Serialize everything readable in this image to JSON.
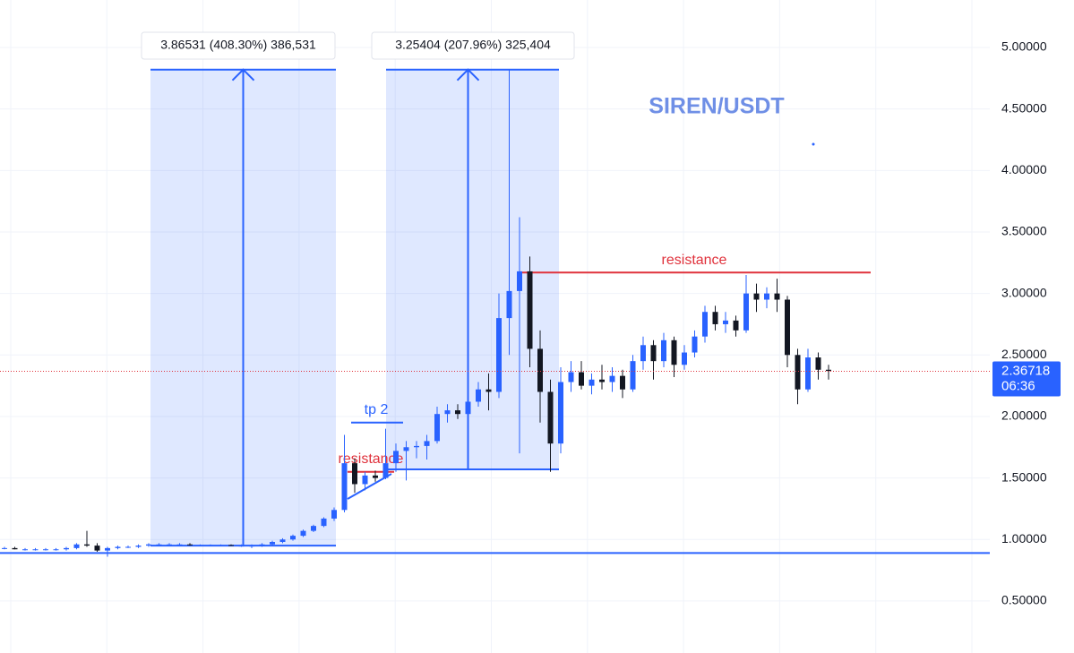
{
  "chart_data": {
    "type": "candlestick",
    "title": "SIREN/USDT",
    "ylim": [
      0.077,
      5.386
    ],
    "yticks": [
      {
        "value": 0.5,
        "label": "0.50000"
      },
      {
        "value": 1,
        "label": "1.00000"
      },
      {
        "value": 1.5,
        "label": "1.50000"
      },
      {
        "value": 2,
        "label": "2.00000"
      },
      {
        "value": 2.5,
        "label": "2.50000"
      },
      {
        "value": 3,
        "label": "3.00000"
      },
      {
        "value": 3.5,
        "label": "3.50000"
      },
      {
        "value": 4,
        "label": "4.00000"
      },
      {
        "value": 4.5,
        "label": "4.50000"
      },
      {
        "value": 5,
        "label": "5.00000"
      }
    ],
    "grid": true,
    "up_color": "#2962ff",
    "down_color": "#131722",
    "ohlc": [
      [
        0.93,
        0.94,
        0.92,
        0.93
      ],
      [
        0.93,
        0.94,
        0.92,
        0.92
      ],
      [
        0.92,
        0.93,
        0.91,
        0.92
      ],
      [
        0.92,
        0.93,
        0.91,
        0.92
      ],
      [
        0.92,
        0.93,
        0.91,
        0.92
      ],
      [
        0.92,
        0.93,
        0.91,
        0.92
      ],
      [
        0.92,
        0.94,
        0.91,
        0.93
      ],
      [
        0.93,
        0.97,
        0.92,
        0.96
      ],
      [
        0.96,
        1.07,
        0.94,
        0.95
      ],
      [
        0.95,
        0.97,
        0.9,
        0.91
      ],
      [
        0.91,
        0.94,
        0.86,
        0.93
      ],
      [
        0.93,
        0.95,
        0.92,
        0.94
      ],
      [
        0.94,
        0.95,
        0.93,
        0.94
      ],
      [
        0.94,
        0.96,
        0.93,
        0.95
      ],
      [
        0.95,
        0.97,
        0.94,
        0.96
      ],
      [
        0.96,
        0.97,
        0.95,
        0.96
      ],
      [
        0.96,
        0.97,
        0.95,
        0.96
      ],
      [
        0.96,
        0.97,
        0.95,
        0.96
      ],
      [
        0.96,
        0.97,
        0.95,
        0.955
      ],
      [
        0.955,
        0.96,
        0.95,
        0.955
      ],
      [
        0.955,
        0.96,
        0.95,
        0.955
      ],
      [
        0.955,
        0.96,
        0.95,
        0.955
      ],
      [
        0.955,
        0.96,
        0.95,
        0.95
      ],
      [
        0.95,
        0.96,
        0.94,
        0.95
      ],
      [
        0.95,
        0.96,
        0.93,
        0.95
      ],
      [
        0.95,
        0.97,
        0.94,
        0.96
      ],
      [
        0.96,
        0.99,
        0.95,
        0.98
      ],
      [
        0.98,
        1.01,
        0.97,
        1.0
      ],
      [
        1.0,
        1.04,
        0.99,
        1.03
      ],
      [
        1.03,
        1.08,
        1.02,
        1.07
      ],
      [
        1.07,
        1.12,
        1.06,
        1.11
      ],
      [
        1.11,
        1.18,
        1.1,
        1.17
      ],
      [
        1.17,
        1.26,
        1.15,
        1.24
      ],
      [
        1.24,
        1.85,
        1.22,
        1.62
      ],
      [
        1.62,
        1.66,
        1.38,
        1.45
      ],
      [
        1.45,
        1.55,
        1.4,
        1.52
      ],
      [
        1.52,
        1.56,
        1.47,
        1.5
      ],
      [
        1.5,
        1.9,
        1.49,
        1.62
      ],
      [
        1.62,
        1.78,
        1.55,
        1.72
      ],
      [
        1.72,
        1.8,
        1.48,
        1.75
      ],
      [
        1.75,
        1.8,
        1.66,
        1.76
      ],
      [
        1.76,
        1.85,
        1.65,
        1.8
      ],
      [
        1.8,
        2.08,
        1.78,
        2.02
      ],
      [
        2.02,
        2.1,
        1.95,
        2.05
      ],
      [
        2.05,
        2.1,
        1.98,
        2.02
      ],
      [
        2.02,
        2.15,
        2.0,
        2.12
      ],
      [
        2.12,
        2.28,
        2.08,
        2.22
      ],
      [
        2.22,
        2.35,
        2.05,
        2.2
      ],
      [
        2.2,
        3.0,
        2.15,
        2.8
      ],
      [
        2.8,
        4.82,
        2.5,
        3.02
      ],
      [
        3.02,
        3.62,
        1.7,
        3.18
      ],
      [
        3.18,
        3.3,
        2.4,
        2.55
      ],
      [
        2.55,
        2.7,
        1.95,
        2.2
      ],
      [
        2.2,
        2.3,
        1.55,
        1.78
      ],
      [
        1.78,
        2.4,
        1.7,
        2.28
      ],
      [
        2.28,
        2.45,
        2.2,
        2.36
      ],
      [
        2.36,
        2.45,
        2.22,
        2.25
      ],
      [
        2.25,
        2.35,
        2.18,
        2.3
      ],
      [
        2.3,
        2.42,
        2.22,
        2.28
      ],
      [
        2.28,
        2.4,
        2.2,
        2.33
      ],
      [
        2.33,
        2.38,
        2.15,
        2.22
      ],
      [
        2.22,
        2.5,
        2.2,
        2.45
      ],
      [
        2.45,
        2.65,
        2.38,
        2.58
      ],
      [
        2.58,
        2.62,
        2.3,
        2.45
      ],
      [
        2.45,
        2.68,
        2.4,
        2.62
      ],
      [
        2.62,
        2.65,
        2.32,
        2.42
      ],
      [
        2.42,
        2.58,
        2.38,
        2.52
      ],
      [
        2.52,
        2.7,
        2.48,
        2.65
      ],
      [
        2.65,
        2.9,
        2.6,
        2.85
      ],
      [
        2.85,
        2.9,
        2.7,
        2.75
      ],
      [
        2.75,
        2.85,
        2.68,
        2.78
      ],
      [
        2.78,
        2.82,
        2.65,
        2.7
      ],
      [
        2.7,
        3.15,
        2.68,
        3.0
      ],
      [
        3.0,
        3.08,
        2.85,
        2.95
      ],
      [
        2.95,
        3.05,
        2.88,
        3.0
      ],
      [
        3.0,
        3.12,
        2.85,
        2.95
      ],
      [
        2.95,
        2.98,
        2.4,
        2.5
      ],
      [
        2.5,
        2.55,
        2.1,
        2.22
      ],
      [
        2.22,
        2.55,
        2.2,
        2.48
      ],
      [
        2.48,
        2.52,
        2.3,
        2.38
      ],
      [
        2.38,
        2.42,
        2.3,
        2.37
      ]
    ],
    "last_price": {
      "value": 2.36718,
      "label": "2.36718",
      "countdown": "06:36"
    },
    "measures": [
      {
        "label": "3.86531 (408.30%) 386,531",
        "from": 0.95,
        "to": 4.82
      },
      {
        "label": "3.25404 (207.96%) 325,404",
        "from": 1.57,
        "to": 4.82
      }
    ],
    "levels": [
      {
        "label": "resistance",
        "value": 3.17,
        "color": "#e0323c"
      },
      {
        "label": "resistance",
        "value": 1.55,
        "color": "#e0323c"
      },
      {
        "label": "tp 2",
        "value": 1.95,
        "color": "#2962ff"
      },
      {
        "value": 0.89,
        "color": "#2962ff"
      }
    ]
  }
}
